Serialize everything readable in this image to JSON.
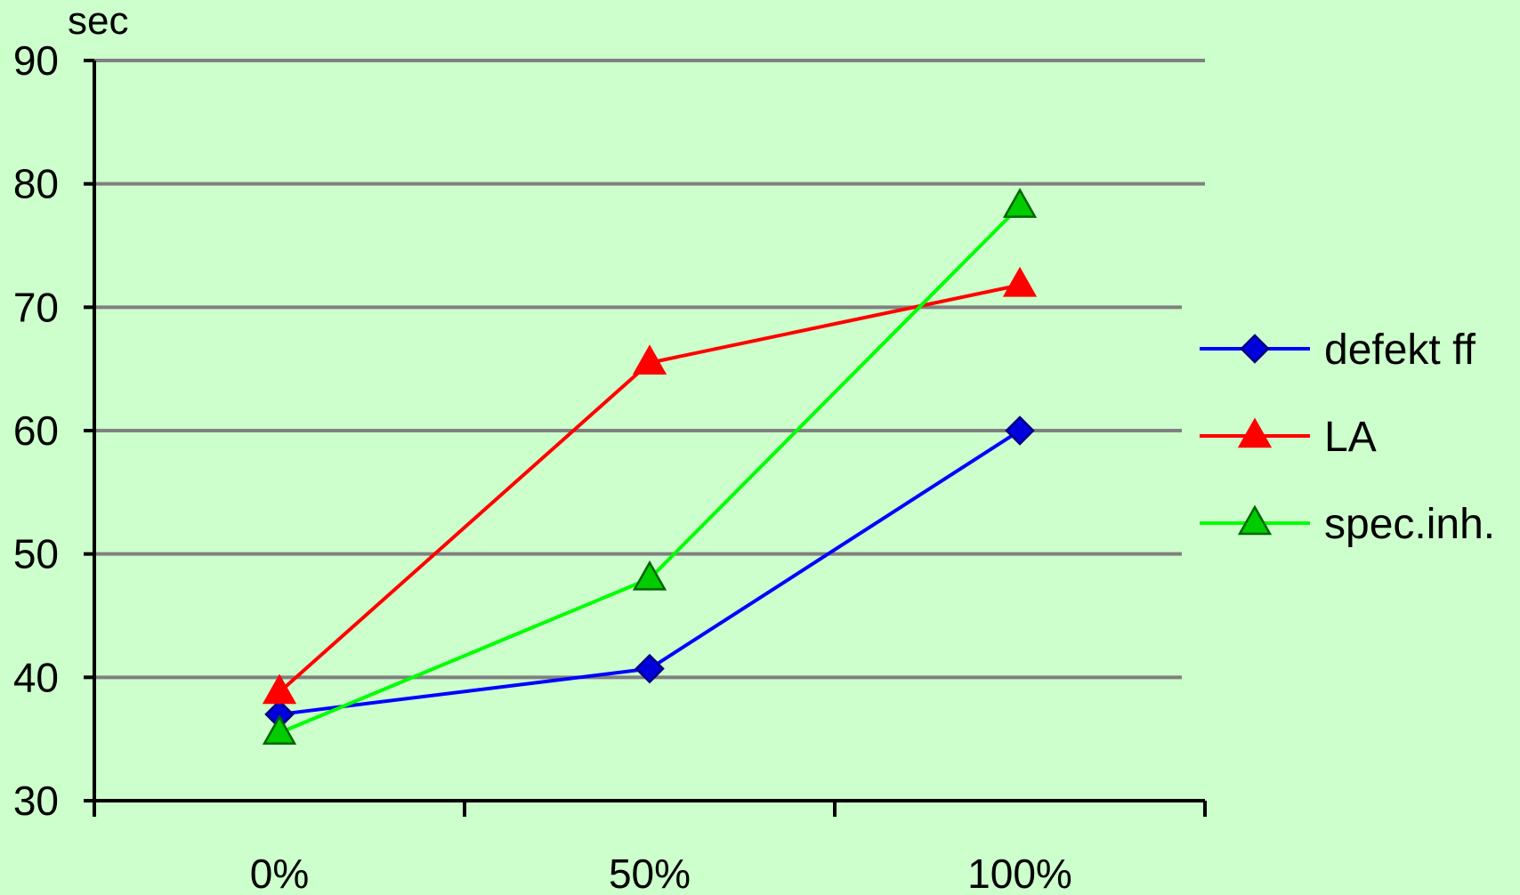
{
  "chart_data": {
    "type": "line",
    "title": "",
    "xlabel": "",
    "ylabel": "sec",
    "categories": [
      "0%",
      "50%",
      "100%"
    ],
    "ylim": [
      30,
      90
    ],
    "yticks": [
      30,
      40,
      50,
      60,
      70,
      80,
      90
    ],
    "grid": true,
    "legend_position": "right",
    "series": [
      {
        "name": "defekt ff",
        "values": [
          37,
          40.7,
          60
        ],
        "color": "#0000ff",
        "marker": "diamond",
        "marker_fill": "#0000dd"
      },
      {
        "name": "LA",
        "values": [
          38.8,
          65.5,
          71.8
        ],
        "color": "#ff0000",
        "marker": "triangle",
        "marker_fill": "#ff0000"
      },
      {
        "name": "spec.inh.",
        "values": [
          35.5,
          48,
          78.2
        ],
        "color": "#00ff00",
        "marker": "triangle",
        "marker_fill": "#00cc00"
      }
    ]
  }
}
